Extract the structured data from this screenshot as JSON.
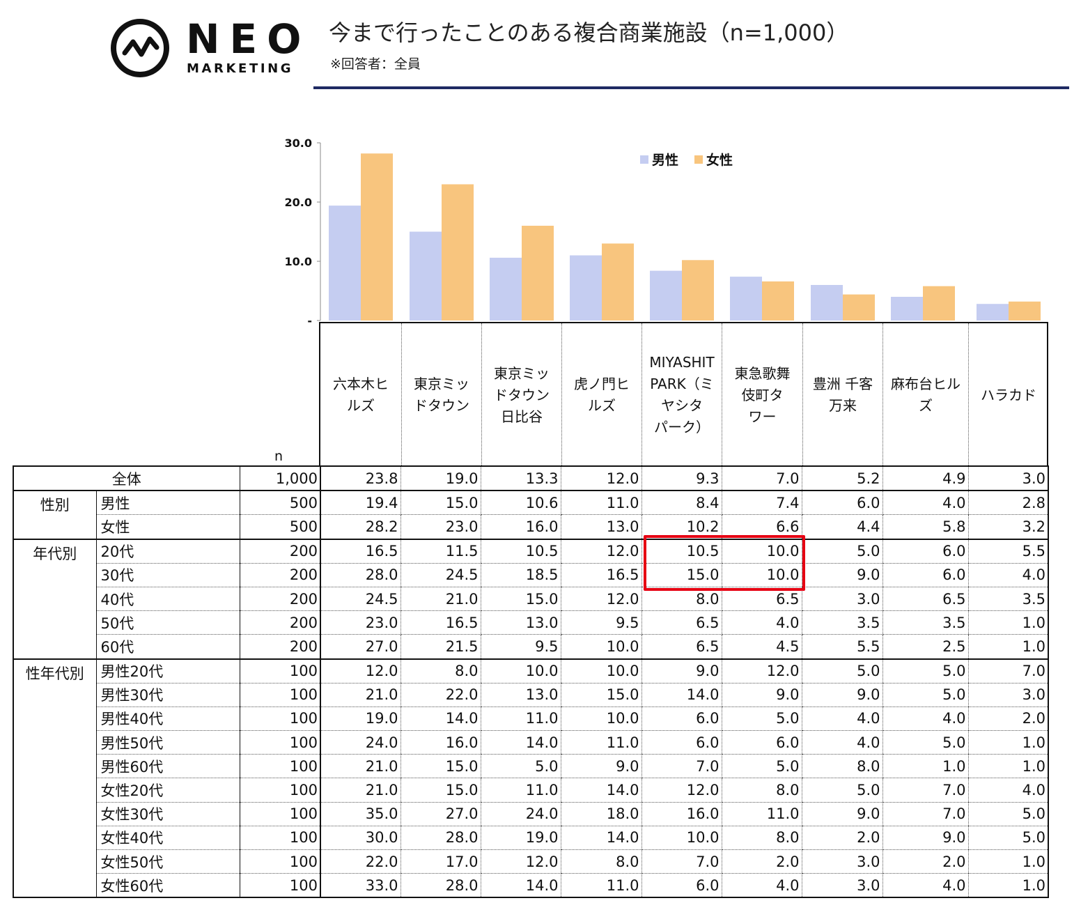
{
  "brand": {
    "name": "NEO",
    "sub": "MARKETING"
  },
  "title": "今まで行ったことのある複合商業施設（n=1,000）",
  "subtitle": "※回答者：全員",
  "chart_data": {
    "type": "bar",
    "categories": [
      "六本木ヒルズ",
      "東京ミッドタウン",
      "東京ミッドタウン日比谷",
      "虎ノ門ヒルズ",
      "MIYASHITA PARK（ミヤシタパーク）",
      "東急歌舞伎町タワー",
      "豊洲 千客万来",
      "麻布台ヒルズ",
      "ハラカド"
    ],
    "series": [
      {
        "name": "男性",
        "color": "#c5cdf1",
        "values": [
          19.4,
          15.0,
          10.6,
          11.0,
          8.4,
          7.4,
          6.0,
          4.0,
          2.8
        ]
      },
      {
        "name": "女性",
        "color": "#f8c57e",
        "values": [
          28.2,
          23.0,
          16.0,
          13.0,
          10.2,
          6.6,
          4.4,
          5.8,
          3.2
        ]
      }
    ],
    "ylim": [
      0,
      30
    ],
    "yticks": [
      "-",
      "10.0",
      "20.0",
      "30.0"
    ],
    "legend_position": "top-right",
    "grid": false
  },
  "table": {
    "n_header": "n",
    "columns": [
      [
        "六本木ヒ",
        "ルズ"
      ],
      [
        "東京ミッ",
        "ドタウン"
      ],
      [
        "東京ミッ",
        "ドタウン",
        "日比谷"
      ],
      [
        "虎ノ門ヒ",
        "ルズ"
      ],
      [
        "MIYASHIT",
        "PARK（ミ",
        "ヤシタ",
        "パーク）"
      ],
      [
        "東急歌舞",
        "伎町タ",
        "ワー"
      ],
      [
        "豊洲 千客",
        "万来"
      ],
      [
        "麻布台ヒル",
        "ズ"
      ],
      [
        "ハラカド"
      ]
    ],
    "sections": [
      {
        "group": "全体",
        "rows": [
          {
            "label": "全体",
            "n": "1,000",
            "values": [
              "23.8",
              "19.0",
              "13.3",
              "12.0",
              "9.3",
              "7.0",
              "5.2",
              "4.9",
              "3.0"
            ]
          }
        ]
      },
      {
        "group": "性別",
        "rows": [
          {
            "label": "男性",
            "n": "500",
            "values": [
              "19.4",
              "15.0",
              "10.6",
              "11.0",
              "8.4",
              "7.4",
              "6.0",
              "4.0",
              "2.8"
            ]
          },
          {
            "label": "女性",
            "n": "500",
            "values": [
              "28.2",
              "23.0",
              "16.0",
              "13.0",
              "10.2",
              "6.6",
              "4.4",
              "5.8",
              "3.2"
            ]
          }
        ]
      },
      {
        "group": "年代別",
        "rows": [
          {
            "label": "20代",
            "n": "200",
            "values": [
              "16.5",
              "11.5",
              "10.5",
              "12.0",
              "10.5",
              "10.0",
              "5.0",
              "6.0",
              "5.5"
            ]
          },
          {
            "label": "30代",
            "n": "200",
            "values": [
              "28.0",
              "24.5",
              "18.5",
              "16.5",
              "15.0",
              "10.0",
              "9.0",
              "6.0",
              "4.0"
            ]
          },
          {
            "label": "40代",
            "n": "200",
            "values": [
              "24.5",
              "21.0",
              "15.0",
              "12.0",
              "8.0",
              "6.5",
              "3.0",
              "6.5",
              "3.5"
            ]
          },
          {
            "label": "50代",
            "n": "200",
            "values": [
              "23.0",
              "16.5",
              "13.0",
              "9.5",
              "6.5",
              "4.0",
              "3.5",
              "3.5",
              "1.0"
            ]
          },
          {
            "label": "60代",
            "n": "200",
            "values": [
              "27.0",
              "21.5",
              "9.5",
              "10.0",
              "6.5",
              "4.5",
              "5.5",
              "2.5",
              "1.0"
            ]
          }
        ]
      },
      {
        "group": "性年代別",
        "rows": [
          {
            "label": "男性20代",
            "n": "100",
            "values": [
              "12.0",
              "8.0",
              "10.0",
              "10.0",
              "9.0",
              "12.0",
              "5.0",
              "5.0",
              "7.0"
            ]
          },
          {
            "label": "男性30代",
            "n": "100",
            "values": [
              "21.0",
              "22.0",
              "13.0",
              "15.0",
              "14.0",
              "9.0",
              "9.0",
              "5.0",
              "3.0"
            ]
          },
          {
            "label": "男性40代",
            "n": "100",
            "values": [
              "19.0",
              "14.0",
              "11.0",
              "10.0",
              "6.0",
              "5.0",
              "4.0",
              "4.0",
              "2.0"
            ]
          },
          {
            "label": "男性50代",
            "n": "100",
            "values": [
              "24.0",
              "16.0",
              "14.0",
              "11.0",
              "6.0",
              "6.0",
              "4.0",
              "5.0",
              "1.0"
            ]
          },
          {
            "label": "男性60代",
            "n": "100",
            "values": [
              "21.0",
              "15.0",
              "5.0",
              "9.0",
              "7.0",
              "5.0",
              "8.0",
              "1.0",
              "1.0"
            ]
          },
          {
            "label": "女性20代",
            "n": "100",
            "values": [
              "21.0",
              "15.0",
              "11.0",
              "14.0",
              "12.0",
              "8.0",
              "5.0",
              "7.0",
              "4.0"
            ]
          },
          {
            "label": "女性30代",
            "n": "100",
            "values": [
              "35.0",
              "27.0",
              "24.0",
              "18.0",
              "16.0",
              "11.0",
              "9.0",
              "7.0",
              "5.0"
            ]
          },
          {
            "label": "女性40代",
            "n": "100",
            "values": [
              "30.0",
              "28.0",
              "19.0",
              "14.0",
              "10.0",
              "8.0",
              "2.0",
              "9.0",
              "5.0"
            ]
          },
          {
            "label": "女性50代",
            "n": "100",
            "values": [
              "22.0",
              "17.0",
              "12.0",
              "8.0",
              "7.0",
              "2.0",
              "3.0",
              "2.0",
              "1.0"
            ]
          },
          {
            "label": "女性60代",
            "n": "100",
            "values": [
              "33.0",
              "28.0",
              "14.0",
              "11.0",
              "6.0",
              "4.0",
              "3.0",
              "4.0",
              "1.0"
            ]
          }
        ]
      }
    ]
  },
  "highlight": {
    "rows": [
      "20代",
      "30代"
    ],
    "columns": [
      4,
      5
    ],
    "color": "#e60012"
  }
}
